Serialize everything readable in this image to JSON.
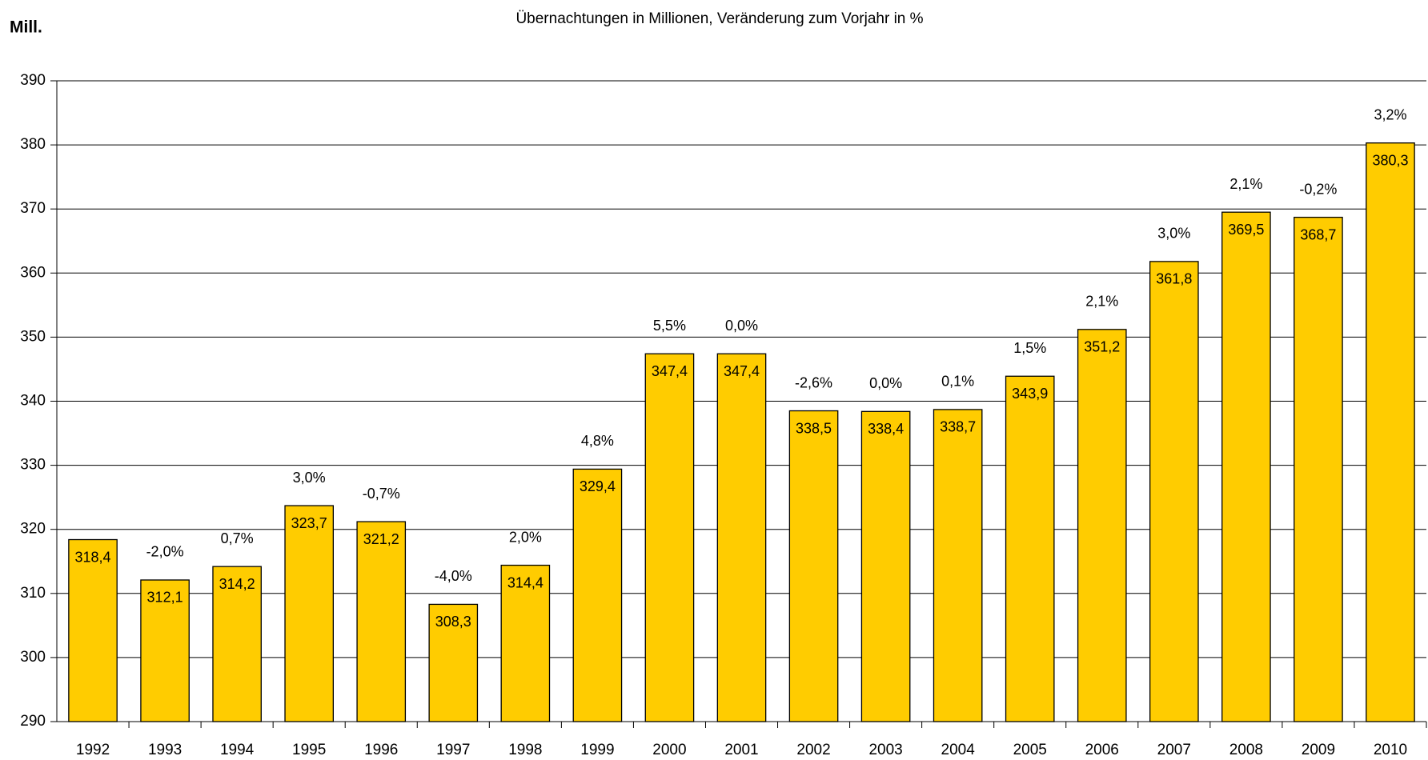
{
  "chart_data": {
    "type": "bar",
    "title": "Übernachtungen in Millionen, Veränderung zum Vorjahr in %",
    "y_label": "Mill.",
    "categories": [
      "1992",
      "1993",
      "1994",
      "1995",
      "1996",
      "1997",
      "1998",
      "1999",
      "2000",
      "2001",
      "2002",
      "2003",
      "2004",
      "2005",
      "2006",
      "2007",
      "2008",
      "2009",
      "2010"
    ],
    "values": [
      318.4,
      312.1,
      314.2,
      323.7,
      321.2,
      308.3,
      314.4,
      329.4,
      347.4,
      347.4,
      338.5,
      338.4,
      338.7,
      343.9,
      351.2,
      361.8,
      369.5,
      368.7,
      380.3
    ],
    "value_labels": [
      "318,4",
      "312,1",
      "314,2",
      "323,7",
      "321,2",
      "308,3",
      "314,4",
      "329,4",
      "347,4",
      "347,4",
      "338,5",
      "338,4",
      "338,7",
      "343,9",
      "351,2",
      "361,8",
      "369,5",
      "368,7",
      "380,3"
    ],
    "changes": [
      null,
      -2.0,
      0.7,
      3.0,
      -0.7,
      -4.0,
      2.0,
      4.8,
      5.5,
      0.0,
      -2.6,
      0.0,
      0.1,
      1.5,
      2.1,
      3.0,
      2.1,
      -0.2,
      3.2
    ],
    "change_labels": [
      null,
      "-2,0%",
      "0,7%",
      "3,0%",
      "-0,7%",
      "-4,0%",
      "2,0%",
      "4,8%",
      "5,5%",
      "0,0%",
      "-2,6%",
      "0,0%",
      "0,1%",
      "1,5%",
      "2,1%",
      "3,0%",
      "2,1%",
      "-0,2%",
      "3,2%"
    ],
    "color": "#ffcc00",
    "ylim": [
      290,
      390
    ],
    "yticks": [
      290,
      300,
      310,
      320,
      330,
      340,
      350,
      360,
      370,
      380,
      390
    ],
    "grid": true
  }
}
